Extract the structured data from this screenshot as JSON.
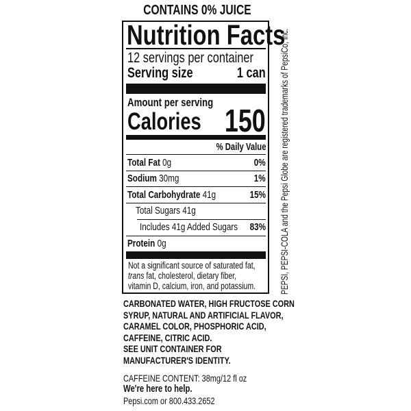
{
  "header": "CONTAINS 0% JUICE",
  "label": {
    "title": "Nutrition Facts",
    "servings": "12 servings per container",
    "serving_size_label": "Serving size",
    "serving_size_value": "1 can",
    "amount_per_serving": "Amount per serving",
    "calories_label": "Calories",
    "calories_value": "150",
    "daily_value_header": "% Daily Value",
    "nutrients": [
      {
        "name": "Total Fat",
        "amount": "0g",
        "dv": "0%"
      },
      {
        "name": "Sodium",
        "amount": "30mg",
        "dv": "1%"
      },
      {
        "name": "Total Carbohydrate",
        "amount": "41g",
        "dv": "15%"
      },
      {
        "name": "Total Sugars 41g",
        "amount": "",
        "dv": ""
      },
      {
        "name": "Includes 41g Added Sugars",
        "amount": "",
        "dv": "83%"
      },
      {
        "name": "Protein",
        "amount": "0g",
        "dv": ""
      }
    ],
    "footnote": {
      "line1": "Not a significant source of saturated fat,",
      "trans": "trans",
      "line2_rest": " fat, cholesterol, dietary fiber,",
      "line3": "vitamin D, calcium, iron, and potassium."
    }
  },
  "ingredients": [
    "CARBONATED WATER, HIGH FRUCTOSE CORN",
    "SYRUP, NATURAL AND ARTIFICIAL FLAVOR,",
    "CARAMEL COLOR, PHOSPHORIC ACID,",
    "CAFFEINE, CITRIC ACID.",
    "SEE UNIT CONTAINER FOR",
    "MANUFACTURER'S IDENTITY."
  ],
  "caffeine": "CAFFEINE CONTENT: 38mg/12 fl oz",
  "help": "We're here to help.",
  "contact": "Pepsi.com or 800.433.2652",
  "trademark": "PEPSI, PEPSI-COLA and the Pepsi Globe are registered trademarks of PepsiCo, Inc."
}
